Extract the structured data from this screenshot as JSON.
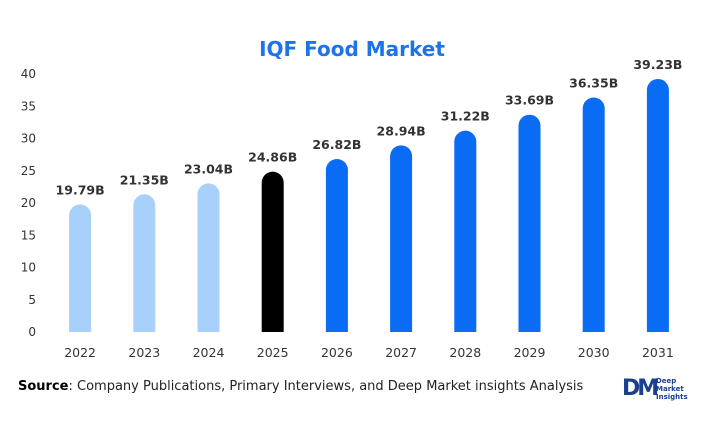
{
  "chart_data": {
    "type": "bar",
    "title": "IQF Food Market",
    "categories": [
      "2022",
      "2023",
      "2024",
      "2025",
      "2026",
      "2027",
      "2028",
      "2029",
      "2030",
      "2031"
    ],
    "values": [
      19.79,
      21.35,
      23.04,
      24.86,
      26.82,
      28.94,
      31.22,
      33.69,
      36.35,
      39.23
    ],
    "data_labels": [
      "19.79B",
      "21.35B",
      "23.04B",
      "24.86B",
      "26.82B",
      "28.94B",
      "31.22B",
      "33.69B",
      "36.35B",
      "39.23B"
    ],
    "yticks": [
      "0",
      "5",
      "10",
      "15",
      "20",
      "25",
      "30",
      "35",
      "40"
    ],
    "ylim": [
      0,
      40
    ],
    "xlabel": "",
    "ylabel": "",
    "grid": false,
    "colors": {
      "historical": "#a7d0fb",
      "current": "#000000",
      "forecast": "#0a6cf5",
      "title": "#1e73e8",
      "axis_text": "#333333"
    },
    "bar_color_groups": [
      "historical",
      "historical",
      "historical",
      "current",
      "forecast",
      "forecast",
      "forecast",
      "forecast",
      "forecast",
      "forecast"
    ]
  },
  "footer": {
    "source_label": "Source",
    "source_text": ": Company Publications, Primary Interviews, and Deep Market insights Analysis"
  },
  "logo": {
    "mark": "DM",
    "line1": "Deep",
    "line2": "Market",
    "line3": "Insights"
  }
}
